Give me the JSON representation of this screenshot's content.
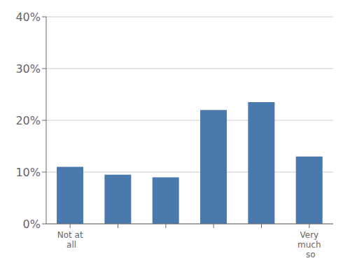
{
  "chart_data": {
    "type": "bar",
    "categories": [
      "Not at\n  all",
      null,
      null,
      null,
      null,
      "Very\nmuch\n  so"
    ],
    "values": [
      11.0,
      9.5,
      9.0,
      22.0,
      23.5,
      13.0
    ],
    "color": "#4a7aad",
    "ylim": [
      0,
      40
    ],
    "yticks": [
      {
        "value": 0,
        "label": "0%"
      },
      {
        "value": 10,
        "label": "10%"
      },
      {
        "value": 20,
        "label": "20%"
      },
      {
        "value": 30,
        "label": "30%"
      },
      {
        "value": 40,
        "label": "40%"
      }
    ],
    "grid": true
  }
}
